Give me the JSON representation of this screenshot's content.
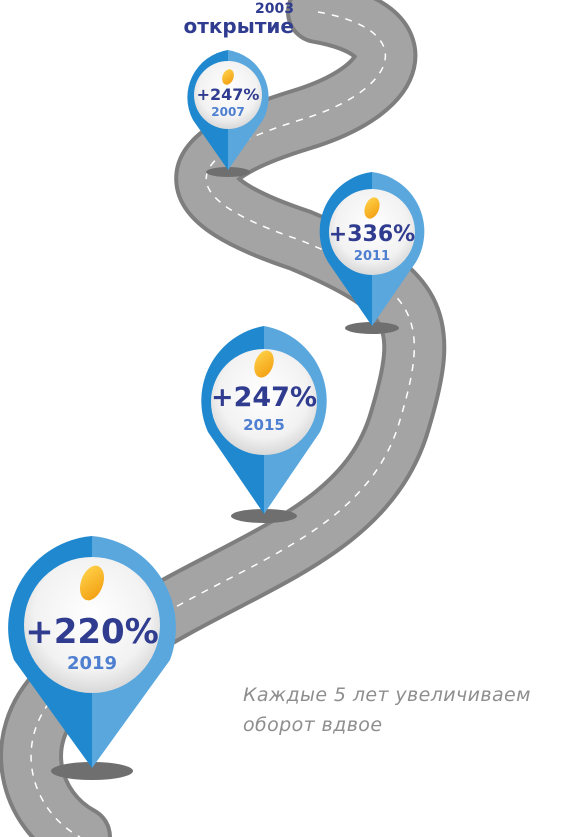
{
  "start": {
    "year": "2003",
    "label": "открытие"
  },
  "milestones": [
    {
      "percent": "+247%",
      "year": "2007"
    },
    {
      "percent": "+336%",
      "year": "2011"
    },
    {
      "percent": "+247%",
      "year": "2015"
    },
    {
      "percent": "+220%",
      "year": "2019"
    }
  ],
  "note": "Каждые 5 лет увеличиваем оборот вдвое",
  "colors": {
    "road": "#9e9e9e",
    "road_edge": "#7e7e7e",
    "pin_dark": "#1f88cf",
    "pin_light": "#5aa7de",
    "percent": "#2f3c8f",
    "year": "#4e7fd0",
    "coin": "#f6b21b",
    "note": "#8e8e8e"
  }
}
